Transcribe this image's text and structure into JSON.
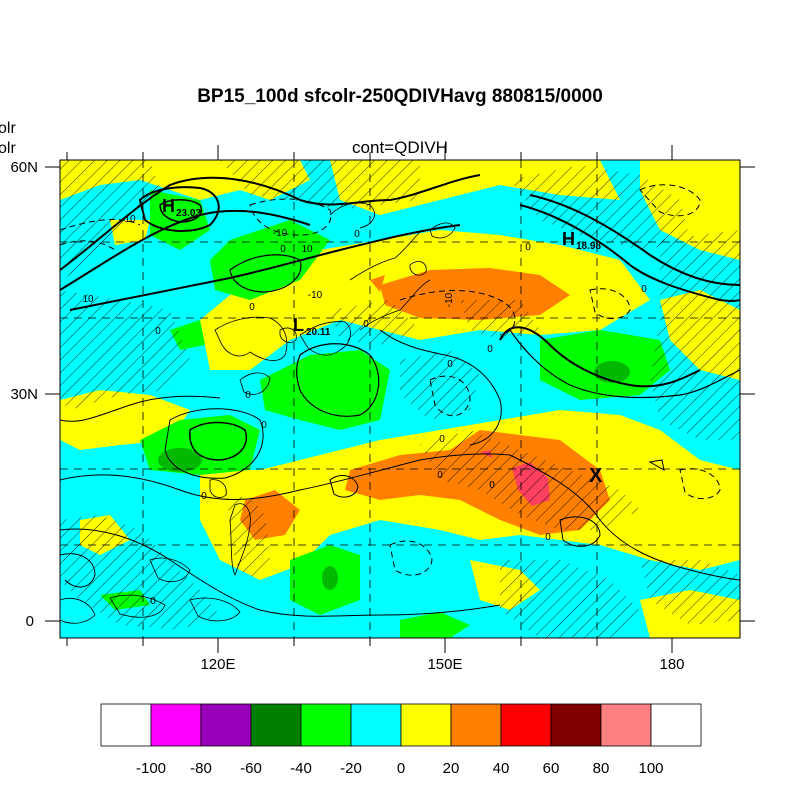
{
  "title": "BP15_100d sfcolr-250QDIVHavg  880815/0000",
  "subtitle": "cont=QDIVH",
  "left_labels": [
    "olr",
    "olr"
  ],
  "axes": {
    "lat_ticks": [
      "60N",
      "30N",
      "0"
    ],
    "lon_ticks": [
      "120E",
      "150E",
      "180"
    ]
  },
  "markers": [
    {
      "letter": "H",
      "value": "23.03"
    },
    {
      "letter": "H",
      "value": "18.98"
    },
    {
      "letter": "L",
      "value": "20.11"
    },
    {
      "letter": "X",
      "value": ""
    }
  ],
  "contour_labels": [
    "10",
    "10",
    "10",
    "-10",
    "-10",
    "-10",
    "0",
    "0",
    "0",
    "0",
    "0",
    "0",
    "0",
    "0",
    "0",
    "0",
    "0",
    "0",
    "0",
    "0",
    "0",
    "0",
    "0"
  ],
  "colorbar": {
    "labels": [
      "-100",
      "-80",
      "-60",
      "-40",
      "-20",
      "0",
      "20",
      "40",
      "60",
      "80",
      "100"
    ],
    "colors": [
      "#ffffff",
      "#ff00ff",
      "#9900bb",
      "#008000",
      "#00ff00",
      "#00ffff",
      "#ffff00",
      "#ff8000",
      "#ff0000",
      "#800000",
      "#ff8080",
      "#ffffff"
    ]
  },
  "palette": {
    "cyan": "#00ffff",
    "yellow": "#ffff00",
    "green": "#00ff00",
    "orange": "#ff8000",
    "red": "#ff0000",
    "darkgreen": "#008000",
    "pink": "#ff8080"
  }
}
